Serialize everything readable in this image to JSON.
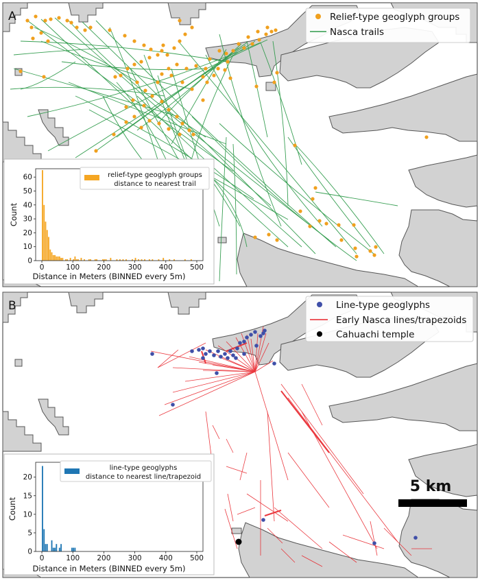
{
  "figure": {
    "panels": [
      {
        "label": "A",
        "legend": [
          {
            "label": "Relief-type geoglyph groups",
            "marker": "dot",
            "color": "#f0a01e"
          },
          {
            "label": "Nasca trails",
            "marker": "line",
            "color": "#2e9a4a"
          }
        ],
        "inset": {
          "legend_line1": "relief-type geoglyph groups",
          "legend_line2": "distance to nearest trail",
          "xlabel": "Distance in Meters (BINNED every 5m)",
          "ylabel": "Count",
          "color": "#f5a623"
        }
      },
      {
        "label": "B",
        "legend": [
          {
            "label": "Line-type geoglyphs",
            "marker": "dot",
            "color": "#3f4fa8"
          },
          {
            "label": "Early Nasca lines/trapezoids",
            "marker": "line",
            "color": "#e8232a"
          },
          {
            "label": "Cahuachi temple",
            "marker": "dot",
            "color": "#000000"
          }
        ],
        "scalebar_label": "5 km",
        "inset": {
          "legend_line1": "line-type geoglyphs",
          "legend_line2": "distance to nearest line/trapezoid",
          "xlabel": "Distance in Meters (BINNED every 5m)",
          "ylabel": "Count",
          "color": "#1f77b4"
        }
      }
    ]
  },
  "chart_data": [
    {
      "type": "bar",
      "xlabel": "Distance in Meters (BINNED every 5m)",
      "ylabel": "Count",
      "xlim": [
        -20,
        520
      ],
      "ylim": [
        0,
        66
      ],
      "xticks": [
        0,
        100,
        200,
        300,
        400,
        500
      ],
      "yticks": [
        0,
        10,
        20,
        30,
        40,
        50,
        60
      ],
      "series": [
        {
          "name": "relief-type geoglyph groups distance to nearest trail",
          "x": [
            0,
            5,
            10,
            15,
            20,
            25,
            30,
            35,
            40,
            45,
            50,
            55,
            60,
            65,
            75,
            80,
            90,
            100,
            105,
            110,
            115,
            125,
            135,
            150,
            155,
            170,
            175,
            195,
            200,
            205,
            220,
            240,
            250,
            260,
            270,
            290,
            300,
            310,
            320,
            330,
            345,
            355,
            375,
            390,
            410,
            425,
            460,
            480
          ],
          "values": [
            65,
            40,
            28,
            22,
            17,
            8,
            6,
            4,
            4,
            3,
            3,
            3,
            2,
            2,
            1,
            1,
            2,
            1,
            3,
            1,
            1,
            2,
            1,
            1,
            1,
            1,
            1,
            1,
            1,
            1,
            2,
            1,
            1,
            1,
            1,
            1,
            2,
            1,
            1,
            1,
            1,
            1,
            1,
            2,
            1,
            1,
            1,
            1
          ]
        }
      ]
    },
    {
      "type": "bar",
      "xlabel": "Distance in Meters (BINNED every 5m)",
      "ylabel": "Count",
      "xlim": [
        -20,
        520
      ],
      "ylim": [
        0,
        24
      ],
      "xticks": [
        0,
        100,
        200,
        300,
        400,
        500
      ],
      "yticks": [
        0,
        5,
        10,
        15,
        20
      ],
      "series": [
        {
          "name": "line-type geoglyphs distance to nearest line/trapezoid",
          "x": [
            0,
            5,
            10,
            15,
            30,
            35,
            40,
            45,
            55,
            60,
            95,
            100,
            105
          ],
          "values": [
            23,
            6,
            2,
            2,
            3,
            1,
            1,
            2,
            1,
            2,
            1,
            1,
            1
          ]
        }
      ]
    }
  ]
}
